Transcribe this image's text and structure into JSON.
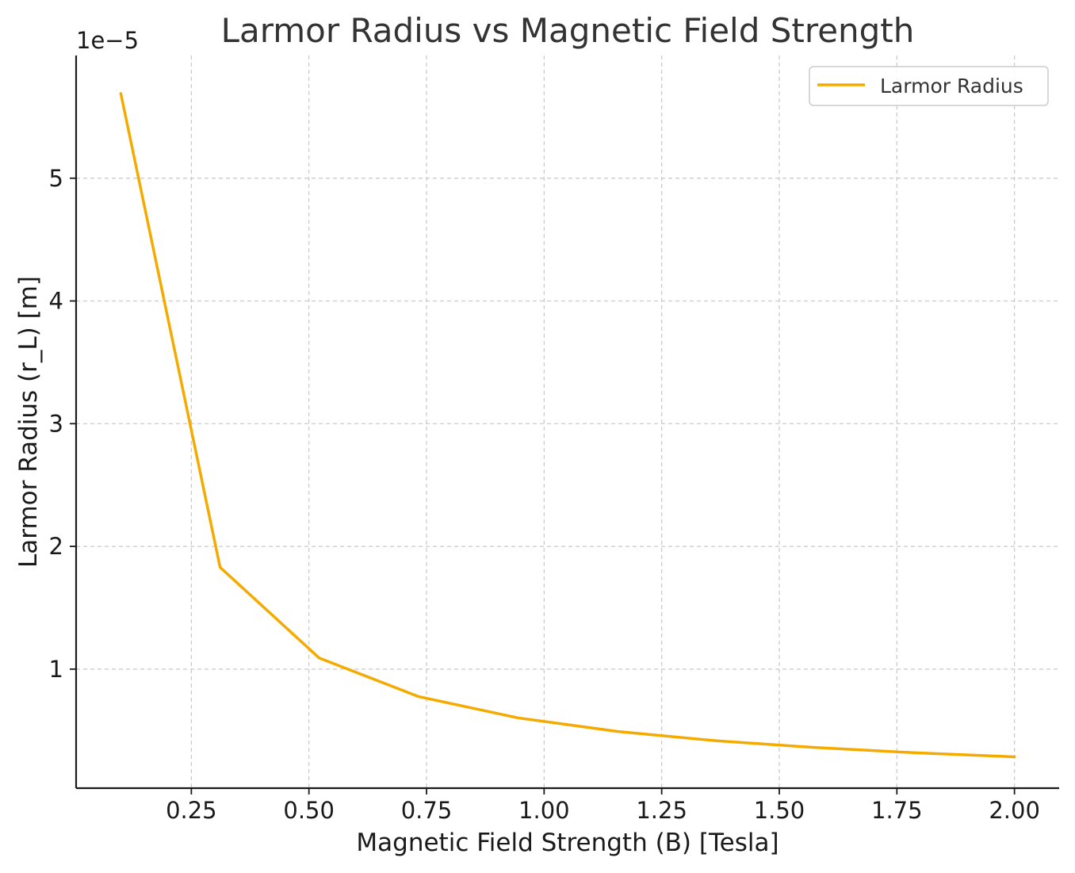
{
  "chart_data": {
    "type": "line",
    "title": "Larmor Radius vs Magnetic Field Strength",
    "xlabel": "Magnetic Field Strength (B) [Tesla]",
    "ylabel": "Larmor Radius (r_L) [m]",
    "y_offset_label": "1e−5",
    "xlim": [
      0.005,
      2.095
    ],
    "ylim": [
      0.03,
      6.0
    ],
    "x_ticks": [
      0.25,
      0.5,
      0.75,
      1.0,
      1.25,
      1.5,
      1.75,
      2.0
    ],
    "x_tick_labels": [
      "0.25",
      "0.50",
      "0.75",
      "1.00",
      "1.25",
      "1.50",
      "1.75",
      "2.00"
    ],
    "y_ticks": [
      1,
      2,
      3,
      4,
      5
    ],
    "y_tick_labels": [
      "1",
      "2",
      "3",
      "4",
      "5"
    ],
    "y_scale_note": "values in units of 1e-5 m",
    "grid": true,
    "legend_position": "top-right",
    "series": [
      {
        "name": "Larmor Radius",
        "color": "#f5aa00",
        "x": [
          0.1,
          0.311,
          0.522,
          0.733,
          0.944,
          1.156,
          1.367,
          1.578,
          1.789,
          2.0
        ],
        "y": [
          5.69,
          1.83,
          1.09,
          0.776,
          0.603,
          0.492,
          0.416,
          0.361,
          0.318,
          0.285
        ]
      }
    ]
  }
}
